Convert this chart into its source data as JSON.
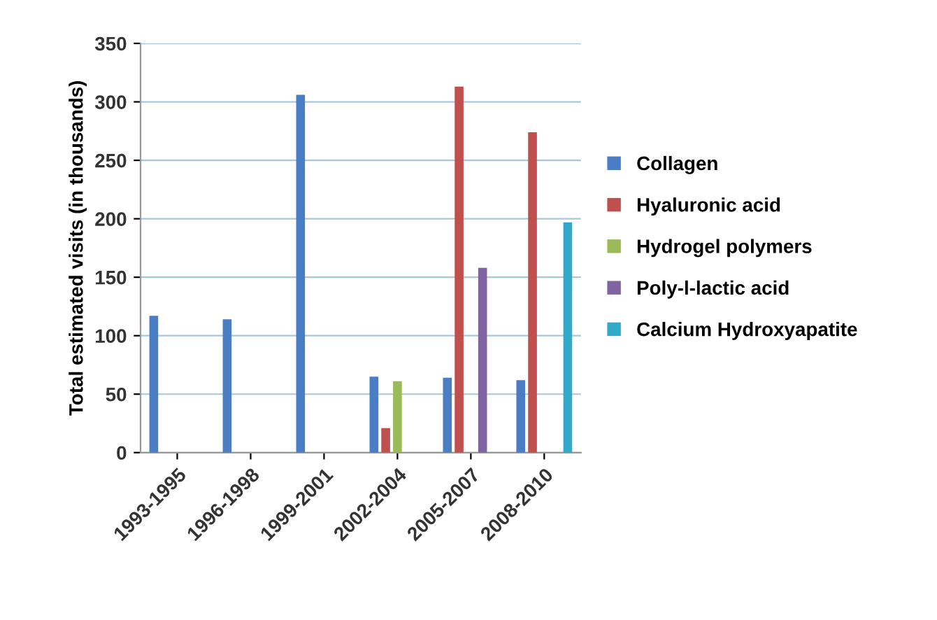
{
  "chart_data": {
    "type": "bar",
    "ylabel": "Total estimated visits (in thousands)",
    "categories": [
      "1993-1995",
      "1996-1998",
      "1999-2001",
      "2002-2004",
      "2005-2007",
      "2008-2010"
    ],
    "series": [
      {
        "name": "Collagen",
        "color": "#4a7dc4",
        "values": [
          117,
          114,
          306,
          65,
          64,
          62
        ]
      },
      {
        "name": "Hyaluronic acid",
        "color": "#c0504d",
        "values": [
          null,
          null,
          null,
          21,
          313,
          274
        ]
      },
      {
        "name": "Hydrogel polymers",
        "color": "#9bbb59",
        "values": [
          null,
          null,
          null,
          61,
          null,
          null
        ]
      },
      {
        "name": "Poly-l-lactic acid",
        "color": "#8064a2",
        "values": [
          null,
          null,
          null,
          null,
          158,
          null
        ]
      },
      {
        "name": "Calcium Hydroxyapatite",
        "color": "#31a9c9",
        "values": [
          null,
          null,
          null,
          null,
          null,
          197
        ]
      }
    ],
    "ylim": [
      0,
      350
    ],
    "yticks": [
      0,
      50,
      100,
      150,
      200,
      250,
      300,
      350
    ],
    "grid": "y",
    "legend": "right"
  }
}
